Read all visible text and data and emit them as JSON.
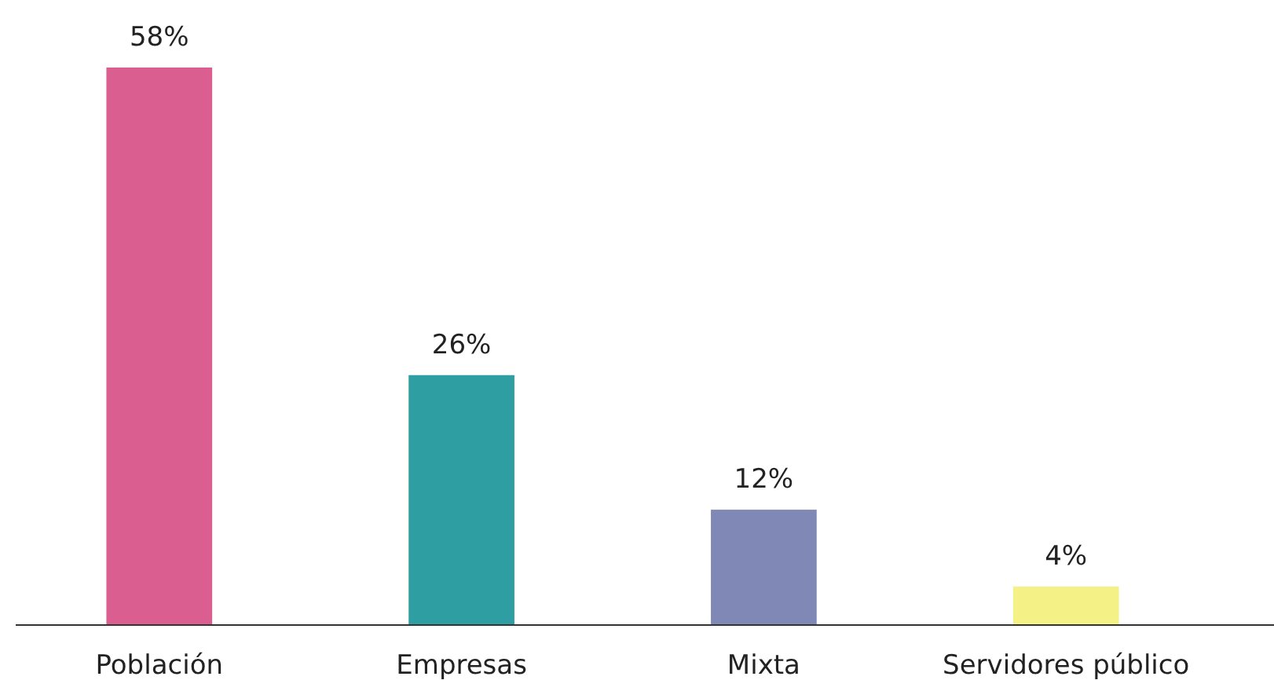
{
  "chart_data": {
    "type": "bar",
    "categories": [
      "Población",
      "Empresas",
      "Mixta",
      "Servidores público"
    ],
    "values": [
      58,
      26,
      12,
      4
    ],
    "colors": [
      "#db5e91",
      "#2e9ea2",
      "#8088b5",
      "#f4f287"
    ],
    "value_labels": [
      "58%",
      "26%",
      "12%",
      "4%"
    ]
  }
}
